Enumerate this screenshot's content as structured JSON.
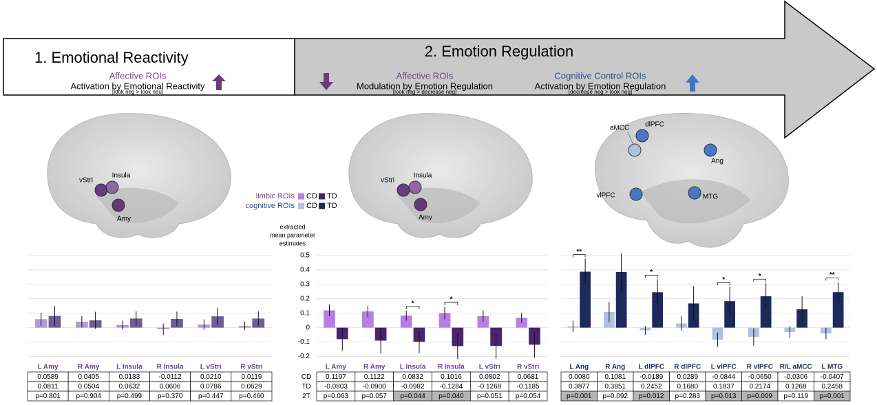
{
  "header": {
    "panel1": {
      "title": "1. Emotional Reactivity",
      "roi": "Affective ROIs",
      "contrast": "Activation by Emotional Reactivity",
      "detail": "[look neg > look neu]"
    },
    "panel2": {
      "title": "2. Emotion Regulation",
      "left": {
        "roi": "Affective ROIs",
        "contrast": "Modulation by Emotion Regulation",
        "detail": "[look neg > decrease neg]"
      },
      "right": {
        "roi": "Cognitive Control ROIs",
        "contrast": "Activation by Emotion Regulation",
        "detail": "[decrease neg > look neg]"
      }
    }
  },
  "brains": [
    {
      "regions": [
        "vStri",
        "Insula",
        "Amy"
      ]
    },
    {
      "regions": [
        "vStri",
        "Insula",
        "Amy"
      ]
    },
    {
      "regions": [
        "aMCC",
        "dlPFC",
        "Ang",
        "vlPFC",
        "MTG"
      ]
    }
  ],
  "chart_data": [
    {
      "type": "bar",
      "categories": [
        "L Amy",
        "R Amy",
        "L Insula",
        "R Insula",
        "L vStri",
        "R vStri"
      ],
      "category_color": "#6b3fa0",
      "series": [
        {
          "color": "#b39ad8",
          "values": [
            0.0589,
            0.0405,
            0.0183,
            -0.0112,
            0.021,
            0.0119
          ],
          "value_labels": [
            "0.0589",
            "0.0405",
            "0.0183",
            "-0.0112",
            "0.0210",
            "0.0119"
          ],
          "errors": [
            0.045,
            0.04,
            0.03,
            0.04,
            0.035,
            0.03
          ]
        },
        {
          "color": "#6e5d96",
          "values": [
            0.0811,
            0.0504,
            0.0632,
            0.0606,
            0.0786,
            0.0629
          ],
          "value_labels": [
            "0.0811",
            "0.0504",
            "0.0632",
            "0.0606",
            "0.0786",
            "0.0629"
          ],
          "errors": [
            0.07,
            0.06,
            0.05,
            0.05,
            0.06,
            0.05
          ]
        }
      ],
      "p_values": [
        "p=0.801",
        "p=0.904",
        "p=0.499",
        "p=0.370",
        "p=0.447",
        "p=0.460"
      ],
      "p_highlight": [
        false,
        false,
        false,
        false,
        false,
        false
      ],
      "ylim": [
        -0.25,
        0.6
      ],
      "yticks": [
        -0.2,
        -0.1,
        0,
        0.1,
        0.2,
        0.3,
        0.4,
        0.5
      ],
      "ytick_labels": false,
      "grid": true
    },
    {
      "type": "bar",
      "legend_title": "limbic ROIs",
      "y_label": [
        "extracted",
        "mean parameter",
        "estimates"
      ],
      "categories": [
        "L Amy",
        "R Amy",
        "L Insula",
        "R Insula",
        "L vStri",
        "R vStri"
      ],
      "category_color": "#6b3fa0",
      "series": [
        {
          "name": "CD",
          "color": "#b77fe6",
          "values": [
            0.1197,
            0.1122,
            0.0832,
            0.1016,
            0.0802,
            0.0681
          ],
          "value_labels": [
            "0.1197",
            "0.1122",
            "0.0832",
            "0.1016",
            "0.0802",
            "0.0681"
          ],
          "errors": [
            0.04,
            0.04,
            0.035,
            0.045,
            0.04,
            0.035
          ]
        },
        {
          "name": "TD",
          "color": "#4b2470",
          "values": [
            -0.0803,
            -0.09,
            -0.0982,
            -0.1284,
            -0.1268,
            -0.1185
          ],
          "value_labels": [
            "-0.0803",
            "-0.0900",
            "-0.0982",
            "-0.1284",
            "-0.1268",
            "-0.1185"
          ],
          "errors": [
            0.08,
            0.09,
            0.08,
            0.09,
            0.09,
            0.09
          ]
        }
      ],
      "p_row_label": "2T",
      "p_values": [
        "p=0.063",
        "p=0.057",
        "p=0.044",
        "p=0.040",
        "p=0.051",
        "p=0.054"
      ],
      "p_highlight": [
        false,
        false,
        true,
        true,
        false,
        false
      ],
      "significance": [
        null,
        null,
        "*",
        "*",
        null,
        null
      ],
      "ylim": [
        -0.25,
        0.6
      ],
      "yticks": [
        -0.2,
        -0.1,
        0,
        0.1,
        0.2,
        0.3,
        0.4,
        0.5
      ],
      "ytick_labels": true,
      "grid": true
    },
    {
      "type": "bar",
      "legend_title": "cognitive ROIs",
      "categories": [
        "L Ang",
        "R Ang",
        "L dlPFC",
        "R dlPFC",
        "L vlPFC",
        "R vlPFC",
        "R/L aMCC",
        "L MTG"
      ],
      "category_color": "#1f2d66",
      "series": [
        {
          "name": "CD",
          "color": "#b0c1e3",
          "values": [
            0.008,
            0.1081,
            -0.0189,
            0.0289,
            -0.0844,
            -0.065,
            -0.0306,
            -0.0407
          ],
          "value_labels": [
            "0.0080",
            "0.1081",
            "-0.0189",
            "0.0289",
            "-0.0844",
            "-0.0650",
            "-0.0306",
            "-0.0407"
          ],
          "errors": [
            0.04,
            0.07,
            0.03,
            0.05,
            0.05,
            0.06,
            0.04,
            0.04
          ]
        },
        {
          "name": "TD",
          "color": "#1e2a5c",
          "values": [
            0.3877,
            0.3851,
            0.2452,
            0.168,
            0.1837,
            0.2174,
            0.1268,
            0.2458
          ],
          "value_labels": [
            "0.3877",
            "0.3851",
            "0.2452",
            "0.1680",
            "0.1837",
            "0.2174",
            "0.1268",
            "0.2458"
          ],
          "errors": [
            0.09,
            0.13,
            0.09,
            0.12,
            0.1,
            0.09,
            0.09,
            0.07
          ]
        }
      ],
      "p_values": [
        "p=0.001",
        "p=0.092",
        "p=0.012",
        "p=0.283",
        "p=0.013",
        "p=0.009",
        "p=0.119",
        "p=0.001"
      ],
      "p_highlight": [
        true,
        false,
        true,
        false,
        true,
        true,
        false,
        true
      ],
      "significance": [
        "**",
        null,
        "*",
        null,
        "*",
        "*",
        null,
        "**"
      ],
      "ylim": [
        -0.25,
        0.6
      ],
      "yticks": [
        -0.2,
        -0.1,
        0,
        0.1,
        0.2,
        0.3,
        0.4,
        0.5
      ],
      "ytick_labels": false,
      "grid": true
    }
  ]
}
